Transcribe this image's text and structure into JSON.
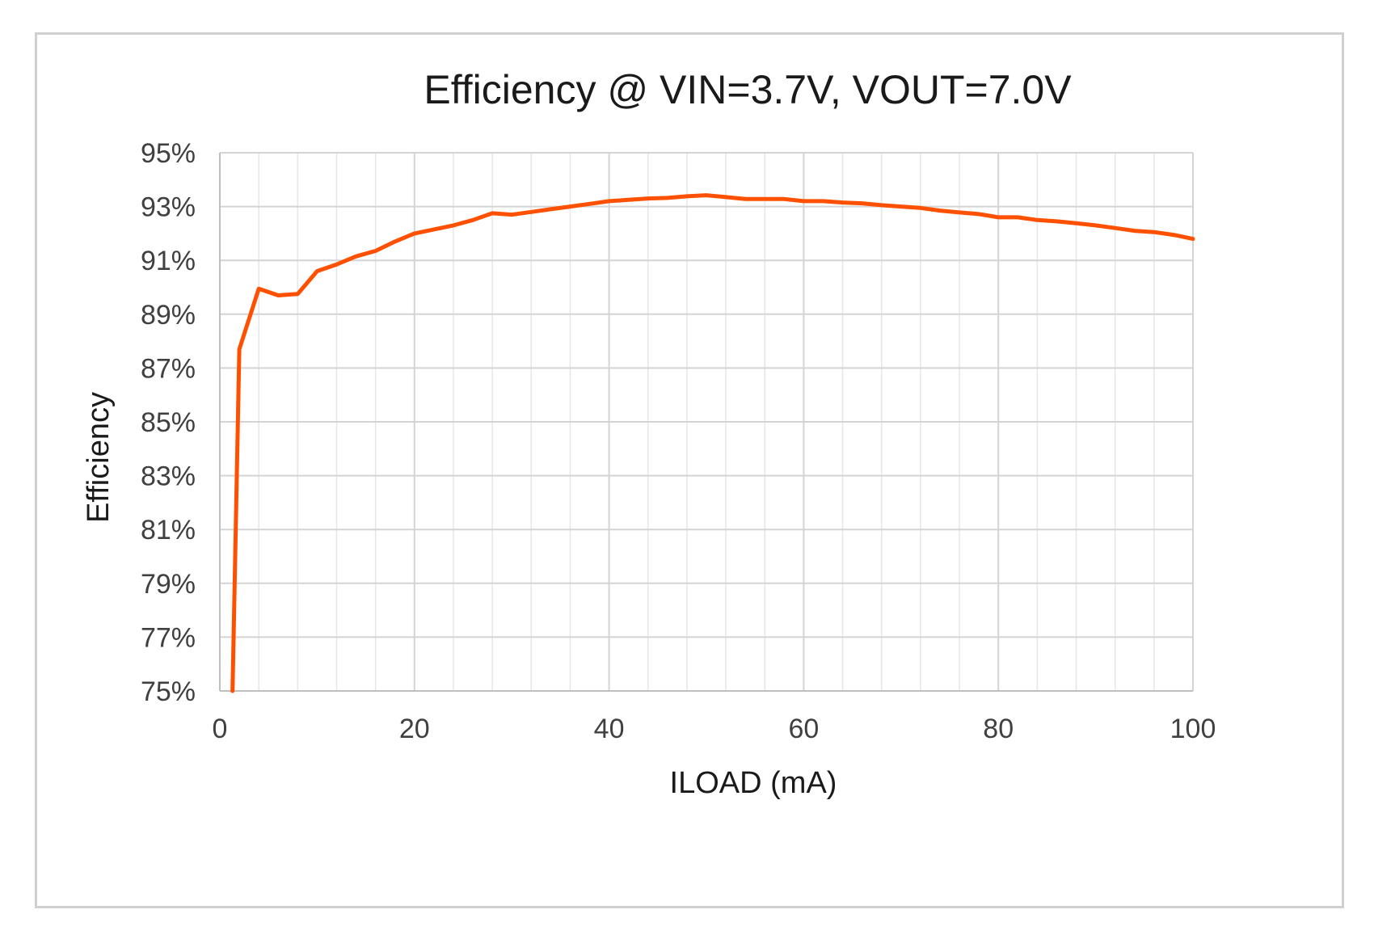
{
  "chart_data": {
    "type": "line",
    "title": "Efficiency @ VIN=3.7V, VOUT=7.0V",
    "xlabel": "ILOAD (mA)",
    "ylabel": "Efficiency",
    "xlim": [
      0,
      100
    ],
    "ylim": [
      75,
      95
    ],
    "x_ticks": [
      0,
      20,
      40,
      60,
      80,
      100
    ],
    "x_tick_labels": [
      "0",
      "20",
      "40",
      "60",
      "80",
      "100"
    ],
    "x_minor_step": 4,
    "y_ticks": [
      75,
      77,
      79,
      81,
      83,
      85,
      87,
      89,
      91,
      93,
      95
    ],
    "y_tick_labels": [
      "75%",
      "77%",
      "79%",
      "81%",
      "83%",
      "85%",
      "87%",
      "89%",
      "91%",
      "93%",
      "95%"
    ],
    "grid": true,
    "line_color": "#ff5000",
    "series": [
      {
        "name": "Efficiency",
        "x": [
          1.3,
          2,
          4,
          6,
          8,
          10,
          12,
          14,
          16,
          18,
          20,
          22,
          24,
          26,
          28,
          30,
          32,
          34,
          36,
          38,
          40,
          42,
          44,
          46,
          48,
          50,
          52,
          54,
          56,
          58,
          60,
          62,
          64,
          66,
          68,
          70,
          72,
          74,
          76,
          78,
          80,
          82,
          84,
          86,
          88,
          90,
          92,
          94,
          96,
          98,
          100
        ],
        "values": [
          75.0,
          87.7,
          89.95,
          89.7,
          89.75,
          90.6,
          90.85,
          91.15,
          91.35,
          91.7,
          92.0,
          92.15,
          92.3,
          92.5,
          92.75,
          92.7,
          92.8,
          92.9,
          93.0,
          93.1,
          93.2,
          93.25,
          93.3,
          93.32,
          93.38,
          93.42,
          93.35,
          93.28,
          93.28,
          93.28,
          93.2,
          93.2,
          93.15,
          93.12,
          93.05,
          93.0,
          92.95,
          92.85,
          92.78,
          92.72,
          92.6,
          92.6,
          92.5,
          92.45,
          92.38,
          92.3,
          92.2,
          92.1,
          92.05,
          91.95,
          91.8
        ]
      }
    ]
  }
}
